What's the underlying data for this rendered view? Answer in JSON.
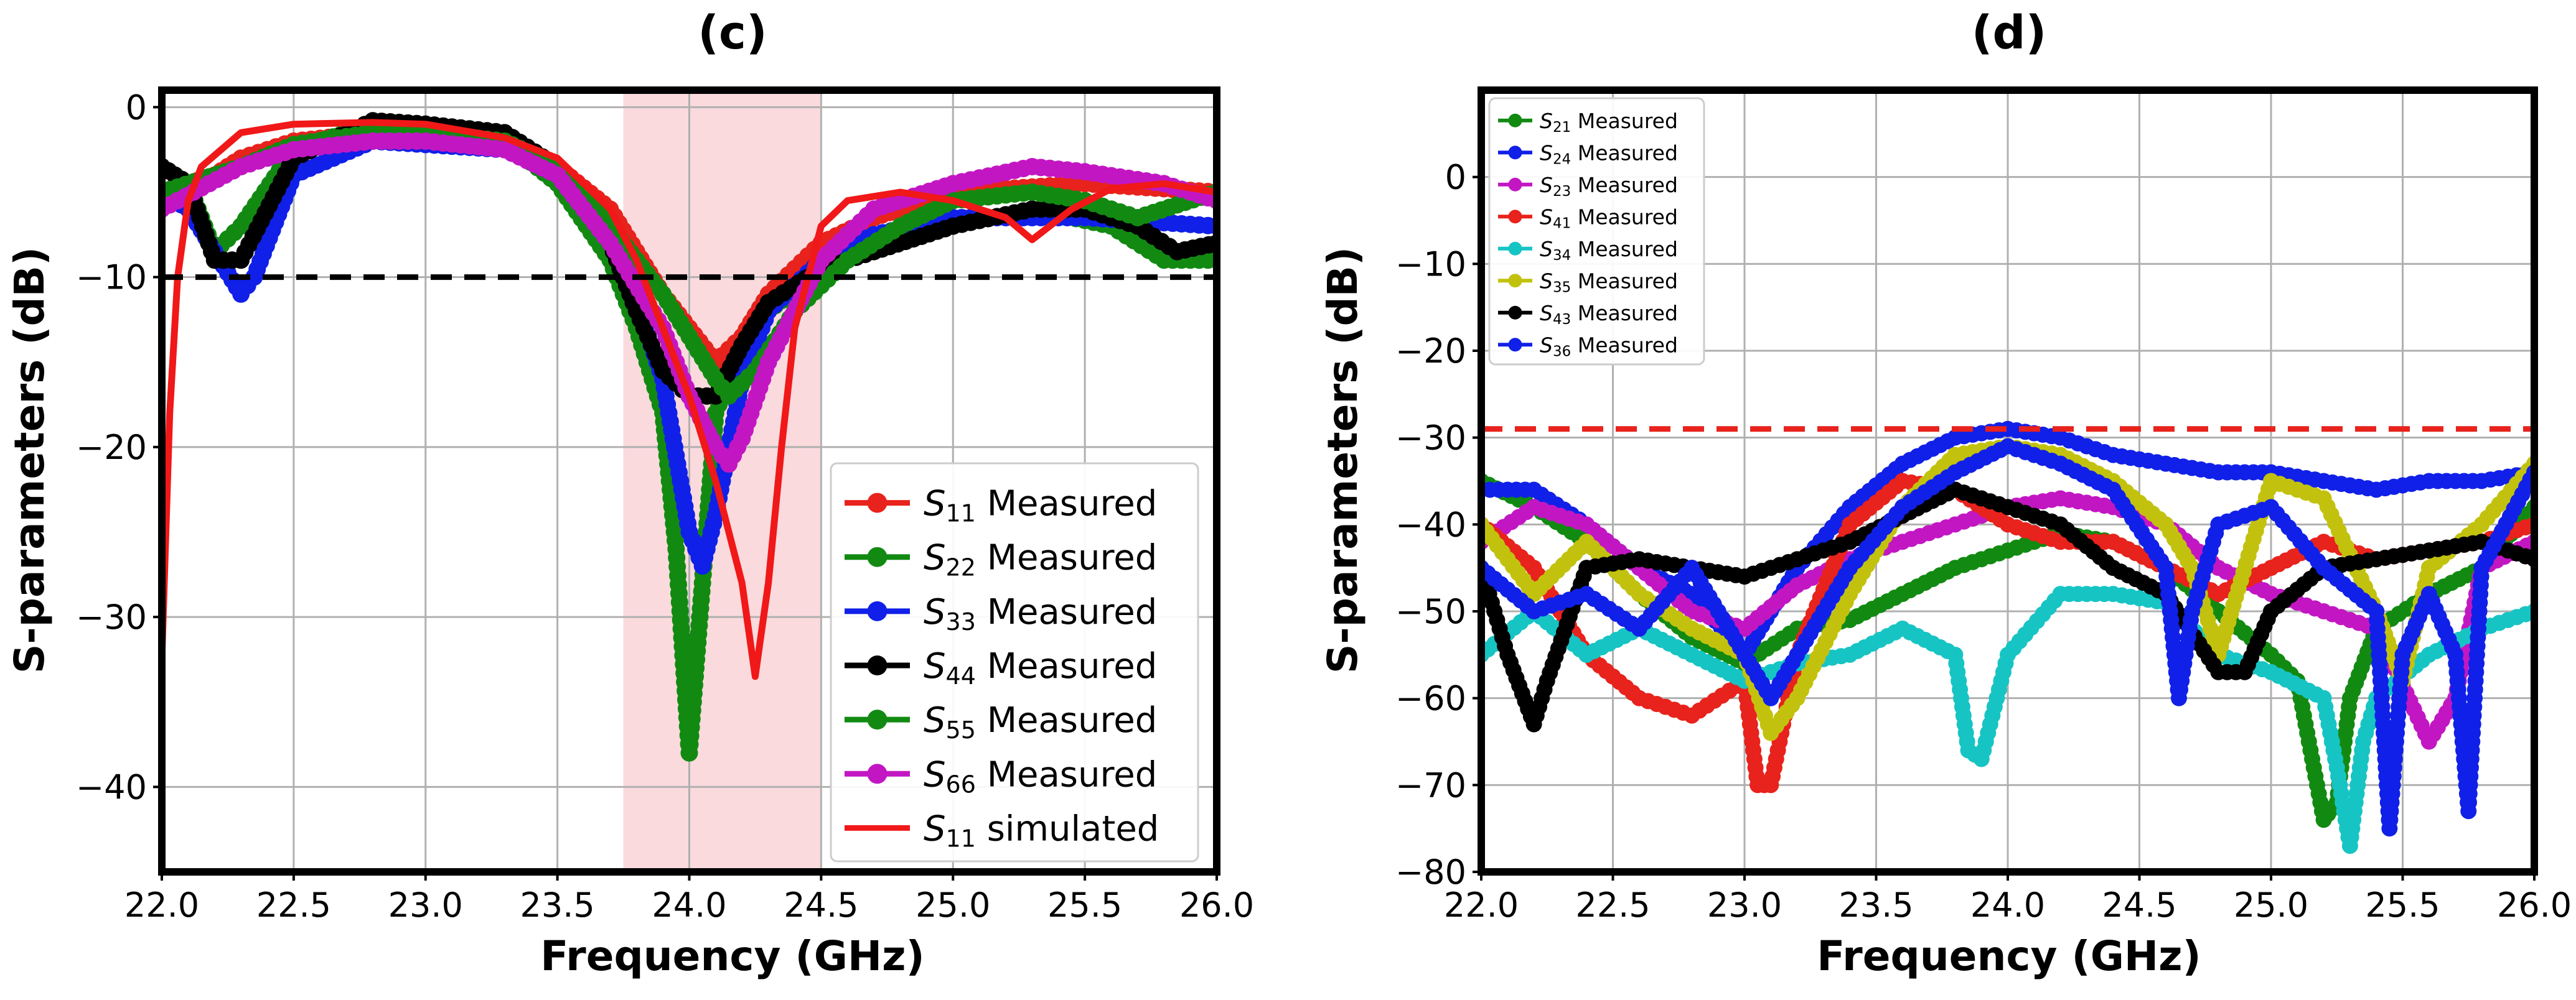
{
  "chart_data": [
    {
      "panel": "(c)",
      "type": "line",
      "title": "(c)",
      "xlabel": "Frequency (GHz)",
      "ylabel": "S-parameters (dB)",
      "xlim": [
        22.0,
        26.0
      ],
      "ylim": [
        -45,
        1
      ],
      "xticks": [
        "22.0",
        "22.5",
        "23.0",
        "23.5",
        "24.0",
        "24.5",
        "25.0",
        "25.5",
        "26.0"
      ],
      "yticks": [
        "0",
        "−10",
        "−20",
        "−30",
        "−40"
      ],
      "xtick_values": [
        22.0,
        22.5,
        23.0,
        23.5,
        24.0,
        24.5,
        25.0,
        25.5,
        26.0
      ],
      "ytick_values": [
        0,
        -10,
        -20,
        -30,
        -40
      ],
      "grid": true,
      "legend_position": "bottom-right",
      "shaded_band": {
        "x": [
          23.75,
          24.5
        ],
        "color": "#fadadd"
      },
      "threshold_line": {
        "y": -10,
        "color": "#000000",
        "style": "dashed"
      },
      "series": [
        {
          "sub": "11",
          "name_suffix": "Measured",
          "color": "#e8221c",
          "marker": true,
          "x": [
            22.0,
            22.2,
            22.3,
            22.5,
            22.8,
            23.0,
            23.3,
            23.5,
            23.7,
            23.8,
            23.9,
            24.0,
            24.1,
            24.2,
            24.3,
            24.5,
            24.7,
            25.0,
            25.5,
            26.0
          ],
          "y": [
            -5,
            -4,
            -3,
            -2,
            -1.5,
            -1.5,
            -2,
            -3.5,
            -6,
            -8.5,
            -11,
            -13,
            -15,
            -13.5,
            -11,
            -8,
            -6.5,
            -5,
            -4.5,
            -5
          ]
        },
        {
          "sub": "22",
          "name_suffix": "Measured",
          "color": "#128a12",
          "marker": true,
          "x": [
            22.0,
            22.1,
            22.2,
            22.3,
            22.5,
            22.8,
            23.0,
            23.3,
            23.5,
            23.7,
            23.8,
            23.9,
            23.95,
            24.0,
            24.05,
            24.1,
            24.2,
            24.3,
            24.5,
            24.7,
            25.0,
            25.3,
            25.6,
            25.8,
            26.0
          ],
          "y": [
            -3.5,
            -4.5,
            -8.5,
            -7,
            -2.5,
            -1,
            -1.5,
            -2,
            -4.5,
            -9,
            -13,
            -18,
            -26,
            -38,
            -28,
            -18,
            -14,
            -12,
            -9.5,
            -8,
            -7,
            -6,
            -7,
            -9,
            -9
          ]
        },
        {
          "sub": "33",
          "name_suffix": "Measured",
          "color": "#1020e8",
          "marker": true,
          "x": [
            22.0,
            22.1,
            22.2,
            22.3,
            22.35,
            22.5,
            22.8,
            23.0,
            23.3,
            23.5,
            23.7,
            23.8,
            23.9,
            24.0,
            24.05,
            24.1,
            24.15,
            24.2,
            24.3,
            24.5,
            24.7,
            25.0,
            25.5,
            26.0
          ],
          "y": [
            -5,
            -6,
            -8.5,
            -11,
            -10,
            -4,
            -2,
            -2.2,
            -2.5,
            -4,
            -8,
            -11.5,
            -16,
            -25,
            -27,
            -24,
            -20,
            -16,
            -12,
            -9,
            -7.5,
            -6.5,
            -6.5,
            -7
          ]
        },
        {
          "sub": "44",
          "name_suffix": "Measured",
          "color": "#000000",
          "marker": true,
          "x": [
            22.0,
            22.1,
            22.2,
            22.3,
            22.5,
            22.8,
            23.0,
            23.3,
            23.5,
            23.7,
            23.8,
            23.9,
            24.0,
            24.1,
            24.2,
            24.3,
            24.5,
            24.7,
            25.0,
            25.3,
            25.5,
            25.7,
            25.85,
            26.0
          ],
          "y": [
            -3.5,
            -4.5,
            -9,
            -9,
            -3,
            -0.8,
            -1,
            -1.5,
            -3.5,
            -8,
            -12,
            -15.5,
            -17,
            -17,
            -14,
            -11.5,
            -9.5,
            -8.5,
            -7,
            -6,
            -6,
            -7,
            -8.5,
            -8
          ]
        },
        {
          "sub": "55",
          "name_suffix": "Measured",
          "color": "#128a12",
          "marker": true,
          "x": [
            22.0,
            22.3,
            22.5,
            22.8,
            23.0,
            23.3,
            23.5,
            23.7,
            23.9,
            24.0,
            24.1,
            24.15,
            24.25,
            24.4,
            24.6,
            24.8,
            25.0,
            25.3,
            25.5,
            25.7,
            26.0
          ],
          "y": [
            -5,
            -3.5,
            -2.2,
            -1.5,
            -1.5,
            -2,
            -3.5,
            -7,
            -11,
            -13.5,
            -16,
            -17,
            -15.5,
            -12,
            -9,
            -7,
            -5.5,
            -5,
            -5.5,
            -6.5,
            -5
          ]
        },
        {
          "sub": "66",
          "name_suffix": "Measured",
          "color": "#c316c3",
          "marker": true,
          "x": [
            22.0,
            22.3,
            22.5,
            22.8,
            23.0,
            23.3,
            23.5,
            23.7,
            23.9,
            24.0,
            24.1,
            24.15,
            24.2,
            24.3,
            24.5,
            24.7,
            25.0,
            25.3,
            25.5,
            25.8,
            26.0
          ],
          "y": [
            -6,
            -3.5,
            -2.5,
            -2,
            -2,
            -2.5,
            -4,
            -8,
            -13,
            -17,
            -20,
            -21,
            -19.5,
            -15,
            -9,
            -6,
            -4.5,
            -3.5,
            -3.8,
            -4.5,
            -5.5
          ]
        },
        {
          "sub": "11",
          "name_suffix": "simulated",
          "color": "#f01818",
          "marker": false,
          "x": [
            22.0,
            22.03,
            22.06,
            22.1,
            22.15,
            22.3,
            22.5,
            22.8,
            23.0,
            23.3,
            23.5,
            23.7,
            23.8,
            23.9,
            24.0,
            24.1,
            24.2,
            24.25,
            24.3,
            24.35,
            24.4,
            24.5,
            24.6,
            24.8,
            25.0,
            25.2,
            25.3,
            25.45,
            25.6,
            25.8,
            26.0
          ],
          "y": [
            -32.5,
            -18,
            -10,
            -5.5,
            -3.5,
            -1.5,
            -1,
            -0.9,
            -1,
            -1.8,
            -3,
            -6,
            -9,
            -13,
            -17,
            -22,
            -28,
            -33.5,
            -28,
            -20,
            -13,
            -7,
            -5.5,
            -5,
            -5.5,
            -6.5,
            -7.8,
            -6,
            -4.8,
            -4.5,
            -5
          ]
        }
      ]
    },
    {
      "panel": "(d)",
      "type": "line",
      "title": "(d)",
      "xlabel": "Frequency (GHz)",
      "ylabel": "S-parameters (dB)",
      "xlim": [
        22.0,
        26.0
      ],
      "ylim": [
        -80,
        10
      ],
      "xticks": [
        "22.0",
        "22.5",
        "23.0",
        "23.5",
        "24.0",
        "24.5",
        "25.0",
        "25.5",
        "26.0"
      ],
      "yticks": [
        "0",
        "−10",
        "−20",
        "−30",
        "−40",
        "−50",
        "−60",
        "−70",
        "−80"
      ],
      "xtick_values": [
        22.0,
        22.5,
        23.0,
        23.5,
        24.0,
        24.5,
        25.0,
        25.5,
        26.0
      ],
      "ytick_values": [
        0,
        -10,
        -20,
        -30,
        -40,
        -50,
        -60,
        -70,
        -80
      ],
      "grid": true,
      "legend_position": "top-left",
      "threshold_line": {
        "y": -29,
        "color": "#e8221c",
        "style": "dashed"
      },
      "series": [
        {
          "sub": "21",
          "name_suffix": "Measured",
          "color": "#128a12",
          "marker": true,
          "x": [
            22.0,
            22.2,
            22.4,
            22.6,
            22.8,
            23.0,
            23.2,
            23.4,
            23.6,
            23.8,
            24.0,
            24.2,
            24.4,
            24.6,
            24.8,
            25.0,
            25.1,
            25.2,
            25.25,
            25.3,
            25.4,
            25.6,
            25.8,
            26.0
          ],
          "y": [
            -35,
            -38,
            -42,
            -48,
            -53,
            -56,
            -52,
            -51,
            -48,
            -45,
            -43,
            -41,
            -42,
            -45,
            -50,
            -55,
            -58,
            -74,
            -72,
            -60,
            -52,
            -48,
            -45,
            -38
          ]
        },
        {
          "sub": "24",
          "name_suffix": "Measured",
          "color": "#1020e8",
          "marker": true,
          "x": [
            22.0,
            22.2,
            22.4,
            22.6,
            22.8,
            23.0,
            23.2,
            23.4,
            23.6,
            23.8,
            24.0,
            24.2,
            24.4,
            24.6,
            24.8,
            25.0,
            25.2,
            25.4,
            25.6,
            25.8,
            26.0
          ],
          "y": [
            -36,
            -36,
            -40,
            -45,
            -48,
            -55,
            -45,
            -38,
            -33,
            -30,
            -29,
            -30,
            -32,
            -33,
            -34,
            -34,
            -35,
            -36,
            -35,
            -35,
            -34
          ]
        },
        {
          "sub": "23",
          "name_suffix": "Measured",
          "color": "#c316c3",
          "marker": true,
          "x": [
            22.0,
            22.2,
            22.4,
            22.6,
            22.8,
            23.0,
            23.2,
            23.4,
            23.6,
            23.8,
            24.0,
            24.2,
            24.4,
            24.6,
            24.8,
            25.0,
            25.2,
            25.4,
            25.6,
            25.7,
            25.8,
            26.0
          ],
          "y": [
            -42,
            -38,
            -40,
            -45,
            -50,
            -52,
            -47,
            -44,
            -42,
            -40,
            -38,
            -37,
            -38,
            -40,
            -45,
            -48,
            -50,
            -52,
            -65,
            -60,
            -45,
            -42
          ]
        },
        {
          "sub": "41",
          "name_suffix": "Measured",
          "color": "#e8221c",
          "marker": true,
          "x": [
            22.0,
            22.2,
            22.4,
            22.6,
            22.8,
            23.0,
            23.05,
            23.1,
            23.2,
            23.4,
            23.6,
            23.8,
            24.0,
            24.2,
            24.4,
            24.6,
            24.8,
            25.0,
            25.2,
            25.4,
            25.6,
            25.8,
            26.0
          ],
          "y": [
            -40,
            -45,
            -55,
            -60,
            -62,
            -58,
            -70,
            -70,
            -55,
            -40,
            -35,
            -36,
            -40,
            -42,
            -42,
            -45,
            -48,
            -45,
            -42,
            -44,
            -43,
            -42,
            -40
          ]
        },
        {
          "sub": "34",
          "name_suffix": "Measured",
          "color": "#17c4c4",
          "marker": true,
          "x": [
            22.0,
            22.2,
            22.4,
            22.6,
            22.8,
            23.0,
            23.2,
            23.4,
            23.6,
            23.8,
            23.85,
            23.9,
            24.0,
            24.2,
            24.4,
            24.6,
            24.8,
            25.0,
            25.2,
            25.25,
            25.3,
            25.35,
            25.4,
            25.6,
            25.8,
            26.0
          ],
          "y": [
            -55,
            -50,
            -55,
            -52,
            -55,
            -58,
            -56,
            -55,
            -52,
            -55,
            -66,
            -67,
            -55,
            -48,
            -48,
            -49,
            -55,
            -57,
            -60,
            -68,
            -77,
            -65,
            -60,
            -55,
            -52,
            -50
          ]
        },
        {
          "sub": "35",
          "name_suffix": "Measured",
          "color": "#c2c20e",
          "marker": true,
          "x": [
            22.0,
            22.2,
            22.4,
            22.6,
            22.8,
            23.0,
            23.1,
            23.2,
            23.4,
            23.6,
            23.8,
            24.0,
            24.2,
            24.4,
            24.6,
            24.7,
            24.8,
            25.0,
            25.2,
            25.4,
            25.5,
            25.6,
            25.8,
            26.0
          ],
          "y": [
            -40,
            -48,
            -42,
            -48,
            -52,
            -55,
            -64,
            -60,
            -48,
            -38,
            -32,
            -31,
            -32,
            -35,
            -40,
            -45,
            -55,
            -35,
            -37,
            -50,
            -58,
            -45,
            -40,
            -33
          ]
        },
        {
          "sub": "43",
          "name_suffix": "Measured",
          "color": "#000000",
          "marker": true,
          "x": [
            22.0,
            22.1,
            22.2,
            22.25,
            22.4,
            22.6,
            22.8,
            23.0,
            23.2,
            23.4,
            23.6,
            23.8,
            24.0,
            24.2,
            24.4,
            24.6,
            24.8,
            24.9,
            25.0,
            25.2,
            25.4,
            25.6,
            25.8,
            26.0
          ],
          "y": [
            -45,
            -55,
            -63,
            -58,
            -45,
            -44,
            -45,
            -46,
            -44,
            -42,
            -39,
            -36,
            -38,
            -40,
            -45,
            -48,
            -57,
            -57,
            -50,
            -45,
            -44,
            -43,
            -42,
            -44
          ]
        },
        {
          "sub": "36",
          "name_suffix": "Measured",
          "color": "#1020e8",
          "marker": true,
          "x": [
            22.0,
            22.2,
            22.4,
            22.6,
            22.8,
            23.0,
            23.1,
            23.2,
            23.4,
            23.6,
            23.8,
            24.0,
            24.2,
            24.4,
            24.6,
            24.65,
            24.7,
            24.8,
            25.0,
            25.2,
            25.4,
            25.45,
            25.5,
            25.6,
            25.7,
            25.75,
            25.8,
            26.0
          ],
          "y": [
            -45,
            -50,
            -48,
            -52,
            -45,
            -55,
            -60,
            -55,
            -45,
            -38,
            -34,
            -31,
            -33,
            -36,
            -45,
            -60,
            -50,
            -40,
            -38,
            -45,
            -50,
            -75,
            -55,
            -48,
            -55,
            -73,
            -45,
            -34
          ]
        }
      ]
    }
  ]
}
